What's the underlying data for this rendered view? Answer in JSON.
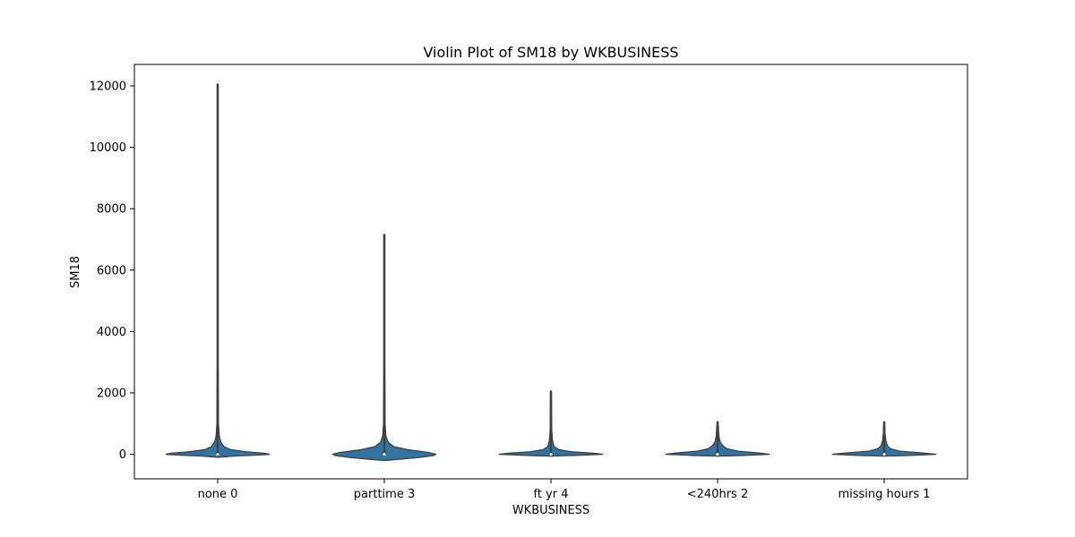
{
  "chart_data": {
    "type": "violin",
    "title": "Violin Plot of SM18 by WKBUSINESS",
    "xlabel": "WKBUSINESS",
    "ylabel": "SM18",
    "ylim": [
      -800,
      12700
    ],
    "yticks": [
      0,
      2000,
      4000,
      6000,
      8000,
      10000,
      12000
    ],
    "grid": false,
    "legend": "none",
    "categories": [
      "none 0",
      "parttime 3",
      "ft yr 4",
      "<240hrs 2",
      "missing hours 1"
    ],
    "violins": [
      {
        "category": "none 0",
        "min": 0,
        "q1": 0,
        "median": 0,
        "q3": 60,
        "max": 12050,
        "profile": [
          [
            -100,
            0.0
          ],
          [
            -60,
            0.3
          ],
          [
            -20,
            0.85
          ],
          [
            0,
            1.0
          ],
          [
            30,
            0.92
          ],
          [
            80,
            0.55
          ],
          [
            150,
            0.25
          ],
          [
            250,
            0.12
          ],
          [
            400,
            0.06
          ],
          [
            600,
            0.03
          ],
          [
            1000,
            0.015
          ],
          [
            3000,
            0.006
          ],
          [
            12050,
            0.004
          ]
        ]
      },
      {
        "category": "parttime 3",
        "min": 0,
        "q1": 0,
        "median": 0,
        "q3": 60,
        "max": 7150,
        "profile": [
          [
            -200,
            0.0
          ],
          [
            -170,
            0.25
          ],
          [
            -100,
            0.7
          ],
          [
            -40,
            0.95
          ],
          [
            0,
            1.0
          ],
          [
            60,
            0.85
          ],
          [
            150,
            0.45
          ],
          [
            250,
            0.18
          ],
          [
            400,
            0.07
          ],
          [
            600,
            0.03
          ],
          [
            1000,
            0.015
          ],
          [
            3000,
            0.006
          ],
          [
            7150,
            0.004
          ]
        ]
      },
      {
        "category": "ft yr 4",
        "min": 0,
        "q1": 0,
        "median": 0,
        "q3": 40,
        "max": 2050,
        "profile": [
          [
            -60,
            0.0
          ],
          [
            -40,
            0.4
          ],
          [
            0,
            1.0
          ],
          [
            30,
            0.85
          ],
          [
            80,
            0.4
          ],
          [
            150,
            0.15
          ],
          [
            250,
            0.06
          ],
          [
            450,
            0.03
          ],
          [
            800,
            0.015
          ],
          [
            2050,
            0.005
          ]
        ]
      },
      {
        "category": "<240hrs 2",
        "min": 0,
        "q1": 0,
        "median": 0,
        "q3": 60,
        "max": 1050,
        "profile": [
          [
            -60,
            0.0
          ],
          [
            -40,
            0.45
          ],
          [
            0,
            1.0
          ],
          [
            40,
            0.8
          ],
          [
            100,
            0.4
          ],
          [
            180,
            0.18
          ],
          [
            280,
            0.1
          ],
          [
            400,
            0.05
          ],
          [
            600,
            0.025
          ],
          [
            1050,
            0.008
          ]
        ]
      },
      {
        "category": "missing hours 1",
        "min": 0,
        "q1": 0,
        "median": 0,
        "q3": 40,
        "max": 1050,
        "profile": [
          [
            -60,
            0.0
          ],
          [
            -40,
            0.45
          ],
          [
            0,
            1.0
          ],
          [
            40,
            0.75
          ],
          [
            100,
            0.3
          ],
          [
            180,
            0.12
          ],
          [
            280,
            0.06
          ],
          [
            450,
            0.03
          ],
          [
            700,
            0.015
          ],
          [
            1050,
            0.008
          ]
        ]
      }
    ],
    "colors": {
      "violin_fill": "#3274a1",
      "violin_edge": "#3f3f3f",
      "box": "#3f3f3f",
      "axis": "#000000"
    }
  }
}
